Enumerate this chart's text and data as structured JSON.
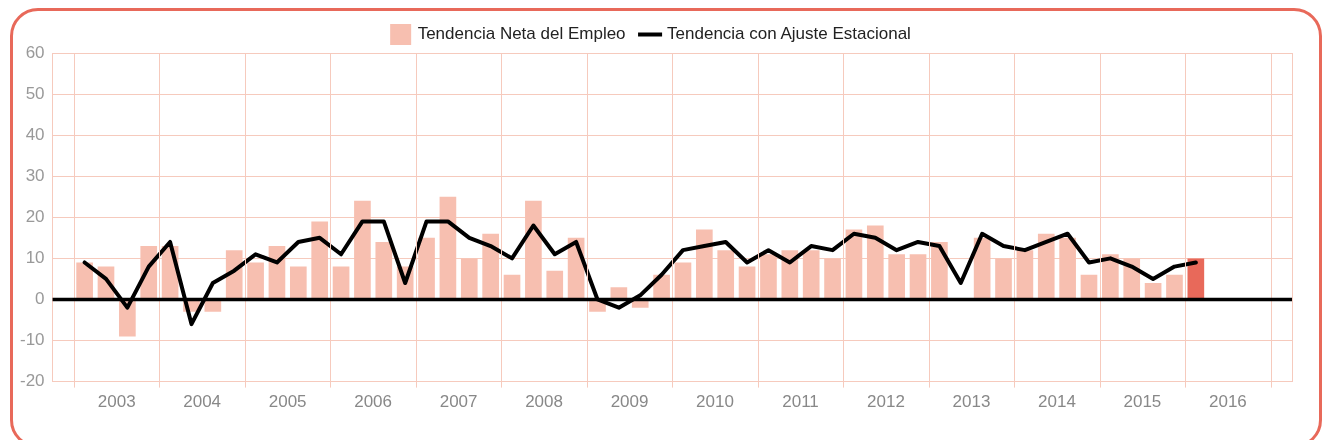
{
  "chart_data": {
    "type": "bar",
    "x": [
      2003.125,
      2003.375,
      2003.625,
      2003.875,
      2004.125,
      2004.375,
      2004.625,
      2004.875,
      2005.125,
      2005.375,
      2005.625,
      2005.875,
      2006.125,
      2006.375,
      2006.625,
      2006.875,
      2007.125,
      2007.375,
      2007.625,
      2007.875,
      2008.125,
      2008.375,
      2008.625,
      2008.875,
      2009.125,
      2009.375,
      2009.625,
      2009.875,
      2010.125,
      2010.375,
      2010.625,
      2010.875,
      2011.125,
      2011.375,
      2011.625,
      2011.875,
      2012.125,
      2012.375,
      2012.625,
      2012.875,
      2013.125,
      2013.375,
      2013.625,
      2013.875,
      2014.125,
      2014.375,
      2014.625,
      2014.875,
      2015.125,
      2015.375,
      2015.625,
      2015.875,
      2016.125
    ],
    "series": [
      {
        "name": "Tendencia Neta del Empleo",
        "color": "#f7bfb0",
        "colors": [
          "#f7bfb0",
          "#f7bfb0",
          "#f7bfb0",
          "#f7bfb0",
          "#f7bfb0",
          "#f7bfb0",
          "#f7bfb0",
          "#f7bfb0",
          "#f7bfb0",
          "#f7bfb0",
          "#f7bfb0",
          "#f7bfb0",
          "#f7bfb0",
          "#f7bfb0",
          "#f7bfb0",
          "#f7bfb0",
          "#f7bfb0",
          "#f7bfb0",
          "#f7bfb0",
          "#f7bfb0",
          "#f7bfb0",
          "#f7bfb0",
          "#f7bfb0",
          "#f7bfb0",
          "#f7bfb0",
          "#f7bfb0",
          "#f7bfb0",
          "#f7bfb0",
          "#f7bfb0",
          "#f7bfb0",
          "#f7bfb0",
          "#f7bfb0",
          "#f7bfb0",
          "#f7bfb0",
          "#f7bfb0",
          "#f7bfb0",
          "#f7bfb0",
          "#f7bfb0",
          "#f7bfb0",
          "#f7bfb0",
          "#f7bfb0",
          "#f7bfb0",
          "#f7bfb0",
          "#f7bfb0",
          "#f7bfb0",
          "#f7bfb0",
          "#f7bfb0",
          "#f7bfb0",
          "#f7bfb0",
          "#f7bfb0",
          "#f7bfb0",
          "#f7bfb0",
          "#e8695a"
        ],
        "values": [
          9,
          8,
          -9,
          13,
          13,
          -3,
          -3,
          12,
          9,
          13,
          8,
          19,
          8,
          24,
          14,
          8,
          15,
          25,
          10,
          16,
          6,
          24,
          7,
          15,
          -3,
          3,
          -2,
          6,
          9,
          17,
          12,
          8,
          11,
          12,
          12,
          10,
          17,
          18,
          11,
          11,
          14,
          null,
          15,
          10,
          12,
          16,
          15,
          6,
          11,
          10,
          4,
          6,
          10
        ]
      },
      {
        "name": "Tendencia con Ajuste Estacional",
        "type": "line",
        "color": "#000000",
        "values": [
          9,
          5,
          -2,
          8,
          14,
          -6,
          4,
          7,
          11,
          9,
          14,
          15,
          11,
          19,
          19,
          4,
          19,
          19,
          15,
          13,
          10,
          18,
          11,
          14,
          0,
          -2,
          1,
          6,
          12,
          13,
          14,
          9,
          12,
          9,
          13,
          12,
          16,
          15,
          12,
          14,
          13,
          4,
          16,
          13,
          12,
          14,
          16,
          9,
          10,
          8,
          5,
          8,
          9
        ]
      }
    ],
    "xlim": [
      2003,
      2017
    ],
    "xticks": [
      {
        "value": 2003,
        "label": null
      },
      {
        "value": 2003.5,
        "label": "2003"
      },
      {
        "value": 2004,
        "label": null
      },
      {
        "value": 2004.5,
        "label": "2004"
      },
      {
        "value": 2005,
        "label": null
      },
      {
        "value": 2005.5,
        "label": "2005"
      },
      {
        "value": 2006,
        "label": null
      },
      {
        "value": 2006.5,
        "label": "2006"
      },
      {
        "value": 2007,
        "label": null
      },
      {
        "value": 2007.5,
        "label": "2007"
      },
      {
        "value": 2008,
        "label": null
      },
      {
        "value": 2008.5,
        "label": "2008"
      },
      {
        "value": 2009,
        "label": null
      },
      {
        "value": 2009.5,
        "label": "2009"
      },
      {
        "value": 2010,
        "label": null
      },
      {
        "value": 2010.5,
        "label": "2010"
      },
      {
        "value": 2011,
        "label": null
      },
      {
        "value": 2011.5,
        "label": "2011"
      },
      {
        "value": 2012,
        "label": null
      },
      {
        "value": 2012.5,
        "label": "2012"
      },
      {
        "value": 2013,
        "label": null
      },
      {
        "value": 2013.5,
        "label": "2013"
      },
      {
        "value": 2014,
        "label": null
      },
      {
        "value": 2014.5,
        "label": "2014"
      },
      {
        "value": 2015,
        "label": null
      },
      {
        "value": 2015.5,
        "label": "2015"
      },
      {
        "value": 2016,
        "label": null
      },
      {
        "value": 2016.5,
        "label": "2016"
      },
      {
        "value": 2017,
        "label": null
      }
    ],
    "ylim": [
      -20,
      60
    ],
    "yticks": [
      -20,
      -10,
      0,
      10,
      20,
      30,
      40,
      50,
      60
    ],
    "ref_lines": [
      {
        "axis": "y",
        "value": 0,
        "color": "#000000"
      }
    ],
    "grid": true,
    "legend": "top",
    "marker": "none",
    "line_style": "solid"
  }
}
